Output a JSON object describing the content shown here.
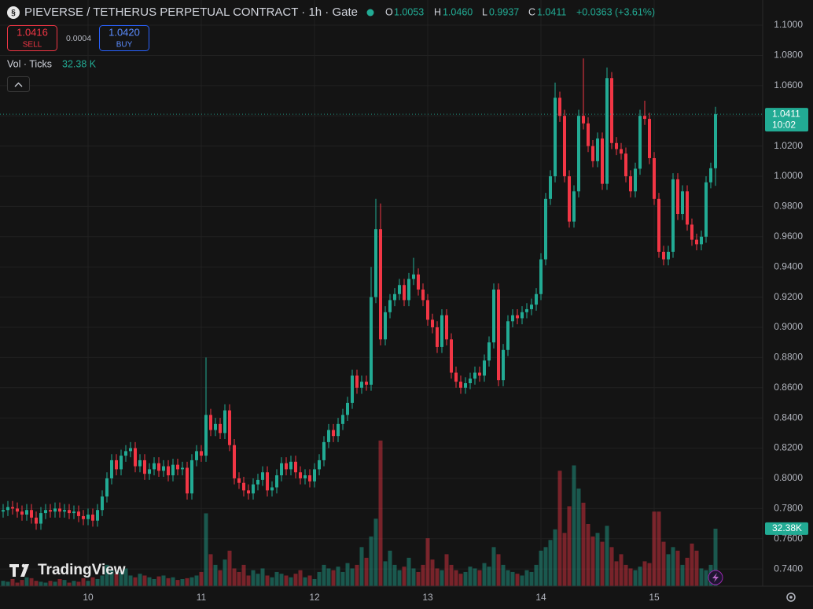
{
  "header": {
    "title": "PIEVERSE / TETHERUS PERPETUAL CONTRACT · 1h · Gate",
    "open_key": "O",
    "open": "1.0053",
    "high_key": "H",
    "high": "1.0460",
    "low_key": "L",
    "low": "0.9937",
    "close_key": "C",
    "close": "1.0411",
    "change": "+0.0363 (+3.61%)",
    "sell_price": "1.0416",
    "sell_label": "SELL",
    "spread": "0.0004",
    "buy_price": "1.0420",
    "buy_label": "BUY",
    "volume_indicator": "Vol · Ticks",
    "volume_value": "32.38 K",
    "price_badge": "1.0411",
    "countdown": "10:02",
    "volume_badge": "32.38K",
    "logo": "TradingView"
  },
  "chart_data": {
    "type": "candlestick",
    "up_color": "#22ab94",
    "down_color": "#f23645",
    "grid": true,
    "ylim": [
      0.7286,
      1.1167
    ],
    "yticks": [
      {
        "value": 1.1,
        "label": "1.1000"
      },
      {
        "value": 1.08,
        "label": "1.0800"
      },
      {
        "value": 1.06,
        "label": "1.0600"
      },
      {
        "value": 1.04,
        "label": "1.0400"
      },
      {
        "value": 1.02,
        "label": "1.0200"
      },
      {
        "value": 1.0,
        "label": "1.0000"
      },
      {
        "value": 0.98,
        "label": "0.9800"
      },
      {
        "value": 0.96,
        "label": "0.9600"
      },
      {
        "value": 0.94,
        "label": "0.9400"
      },
      {
        "value": 0.92,
        "label": "0.9200"
      },
      {
        "value": 0.9,
        "label": "0.9000"
      },
      {
        "value": 0.88,
        "label": "0.8800"
      },
      {
        "value": 0.86,
        "label": "0.8600"
      },
      {
        "value": 0.84,
        "label": "0.8400"
      },
      {
        "value": 0.82,
        "label": "0.8200"
      },
      {
        "value": 0.8,
        "label": "0.8000"
      },
      {
        "value": 0.78,
        "label": "0.7800"
      },
      {
        "value": 0.76,
        "label": "0.7600"
      },
      {
        "value": 0.74,
        "label": "0.7400"
      }
    ],
    "xticks": [
      {
        "value": 18,
        "label": "10"
      },
      {
        "value": 42,
        "label": "11"
      },
      {
        "value": 66,
        "label": "12"
      },
      {
        "value": 90,
        "label": "13"
      },
      {
        "value": 114,
        "label": "14"
      },
      {
        "value": 138,
        "label": "15"
      }
    ],
    "open": [
      0.778,
      0.779,
      0.781,
      0.78,
      0.778,
      0.776,
      0.779,
      0.774,
      0.77,
      0.777,
      0.779,
      0.778,
      0.78,
      0.778,
      0.779,
      0.777,
      0.778,
      0.775,
      0.773,
      0.776,
      0.772,
      0.779,
      0.788,
      0.8,
      0.812,
      0.806,
      0.815,
      0.818,
      0.82,
      0.808,
      0.812,
      0.803,
      0.806,
      0.81,
      0.805,
      0.808,
      0.802,
      0.809,
      0.806,
      0.807,
      0.79,
      0.812,
      0.818,
      0.815,
      0.842,
      0.832,
      0.836,
      0.83,
      0.845,
      0.822,
      0.8,
      0.797,
      0.792,
      0.79,
      0.796,
      0.799,
      0.804,
      0.792,
      0.794,
      0.802,
      0.81,
      0.806,
      0.811,
      0.804,
      0.8,
      0.802,
      0.798,
      0.806,
      0.812,
      0.824,
      0.832,
      0.828,
      0.836,
      0.842,
      0.85,
      0.868,
      0.86,
      0.864,
      0.862,
      0.92,
      0.965,
      0.892,
      0.91,
      0.918,
      0.922,
      0.928,
      0.918,
      0.932,
      0.935,
      0.925,
      0.918,
      0.905,
      0.9,
      0.887,
      0.908,
      0.892,
      0.87,
      0.864,
      0.86,
      0.863,
      0.866,
      0.87,
      0.868,
      0.878,
      0.89,
      0.925,
      0.865,
      0.885,
      0.904,
      0.908,
      0.906,
      0.91,
      0.912,
      0.915,
      0.922,
      0.945,
      0.985,
      1.0,
      1.052,
      1.04,
      1.0,
      0.97,
      0.99,
      1.04,
      1.035,
      1.02,
      1.01,
      1.025,
      0.995,
      1.065,
      1.022,
      1.018,
      1.015,
      1.0,
      0.99,
      1.005,
      1.04,
      1.038,
      1.012,
      0.985,
      0.95,
      0.945,
      0.95,
      0.998,
      0.975,
      0.99,
      0.968,
      0.958,
      0.955,
      0.96,
      0.996,
      1.0053
    ],
    "high": [
      0.783,
      0.785,
      0.785,
      0.784,
      0.782,
      0.783,
      0.783,
      0.778,
      0.781,
      0.783,
      0.783,
      0.784,
      0.784,
      0.783,
      0.783,
      0.782,
      0.782,
      0.779,
      0.78,
      0.78,
      0.783,
      0.792,
      0.804,
      0.816,
      0.816,
      0.819,
      0.822,
      0.824,
      0.824,
      0.816,
      0.816,
      0.81,
      0.814,
      0.814,
      0.812,
      0.812,
      0.813,
      0.813,
      0.811,
      0.811,
      0.816,
      0.822,
      0.822,
      0.88,
      0.846,
      0.84,
      0.84,
      0.849,
      0.849,
      0.826,
      0.804,
      0.801,
      0.796,
      0.8,
      0.803,
      0.808,
      0.808,
      0.798,
      0.806,
      0.814,
      0.814,
      0.815,
      0.815,
      0.808,
      0.806,
      0.806,
      0.81,
      0.816,
      0.828,
      0.836,
      0.836,
      0.84,
      0.846,
      0.854,
      0.872,
      0.872,
      0.868,
      0.868,
      0.94,
      0.985,
      0.982,
      0.914,
      0.922,
      0.926,
      0.932,
      0.932,
      0.936,
      0.946,
      0.939,
      0.929,
      0.922,
      0.909,
      0.904,
      0.912,
      0.912,
      0.896,
      0.874,
      0.868,
      0.867,
      0.87,
      0.874,
      0.874,
      0.882,
      0.894,
      0.929,
      0.929,
      0.889,
      0.908,
      0.912,
      0.912,
      0.914,
      0.916,
      0.919,
      0.926,
      0.949,
      0.989,
      1.004,
      1.062,
      1.056,
      1.044,
      1.004,
      0.994,
      1.044,
      1.078,
      1.039,
      1.024,
      1.029,
      1.029,
      1.072,
      1.069,
      1.026,
      1.022,
      1.019,
      1.004,
      1.009,
      1.044,
      1.05,
      1.042,
      1.016,
      0.989,
      0.954,
      0.954,
      1.002,
      1.002,
      0.994,
      0.994,
      0.972,
      0.962,
      0.964,
      1.0,
      1.009,
      1.046
    ],
    "low": [
      0.774,
      0.775,
      0.776,
      0.774,
      0.772,
      0.772,
      0.77,
      0.766,
      0.766,
      0.773,
      0.774,
      0.774,
      0.774,
      0.774,
      0.773,
      0.773,
      0.771,
      0.769,
      0.769,
      0.768,
      0.768,
      0.775,
      0.784,
      0.796,
      0.802,
      0.802,
      0.811,
      0.814,
      0.804,
      0.804,
      0.799,
      0.799,
      0.802,
      0.801,
      0.801,
      0.798,
      0.798,
      0.802,
      0.802,
      0.786,
      0.786,
      0.808,
      0.811,
      0.811,
      0.828,
      0.828,
      0.826,
      0.826,
      0.818,
      0.796,
      0.793,
      0.788,
      0.786,
      0.786,
      0.792,
      0.795,
      0.788,
      0.788,
      0.79,
      0.798,
      0.802,
      0.802,
      0.8,
      0.796,
      0.796,
      0.794,
      0.794,
      0.802,
      0.808,
      0.82,
      0.824,
      0.824,
      0.832,
      0.838,
      0.846,
      0.856,
      0.856,
      0.858,
      0.858,
      0.916,
      0.888,
      0.888,
      0.906,
      0.914,
      0.918,
      0.914,
      0.914,
      0.928,
      0.921,
      0.914,
      0.901,
      0.896,
      0.883,
      0.883,
      0.888,
      0.866,
      0.86,
      0.856,
      0.856,
      0.859,
      0.862,
      0.864,
      0.864,
      0.874,
      0.886,
      0.861,
      0.861,
      0.881,
      0.9,
      0.902,
      0.902,
      0.906,
      0.908,
      0.911,
      0.918,
      0.941,
      0.981,
      0.996,
      1.036,
      0.996,
      0.966,
      0.966,
      0.986,
      1.031,
      1.016,
      1.006,
      1.006,
      0.991,
      0.991,
      1.018,
      1.014,
      1.011,
      0.996,
      0.986,
      0.986,
      1.001,
      1.034,
      1.008,
      0.981,
      0.946,
      0.941,
      0.941,
      0.946,
      0.971,
      0.971,
      0.964,
      0.954,
      0.951,
      0.951,
      0.956,
      0.992,
      0.9937
    ],
    "close": [
      0.779,
      0.781,
      0.78,
      0.778,
      0.776,
      0.779,
      0.774,
      0.77,
      0.777,
      0.779,
      0.778,
      0.78,
      0.778,
      0.779,
      0.777,
      0.778,
      0.775,
      0.773,
      0.776,
      0.772,
      0.779,
      0.788,
      0.8,
      0.812,
      0.806,
      0.815,
      0.818,
      0.82,
      0.808,
      0.812,
      0.803,
      0.806,
      0.81,
      0.805,
      0.808,
      0.802,
      0.809,
      0.806,
      0.807,
      0.79,
      0.812,
      0.818,
      0.815,
      0.842,
      0.832,
      0.836,
      0.83,
      0.845,
      0.822,
      0.8,
      0.797,
      0.792,
      0.79,
      0.796,
      0.799,
      0.804,
      0.792,
      0.794,
      0.802,
      0.81,
      0.806,
      0.811,
      0.804,
      0.8,
      0.802,
      0.798,
      0.806,
      0.812,
      0.824,
      0.832,
      0.828,
      0.836,
      0.842,
      0.85,
      0.868,
      0.86,
      0.864,
      0.862,
      0.92,
      0.965,
      0.892,
      0.91,
      0.918,
      0.922,
      0.928,
      0.918,
      0.932,
      0.935,
      0.925,
      0.918,
      0.905,
      0.9,
      0.887,
      0.908,
      0.892,
      0.87,
      0.864,
      0.86,
      0.863,
      0.866,
      0.87,
      0.868,
      0.878,
      0.89,
      0.925,
      0.865,
      0.885,
      0.904,
      0.908,
      0.906,
      0.91,
      0.912,
      0.915,
      0.922,
      0.945,
      0.985,
      1.0,
      1.052,
      1.04,
      1.0,
      0.97,
      0.99,
      1.04,
      1.035,
      1.02,
      1.01,
      1.025,
      0.995,
      1.065,
      1.022,
      1.018,
      1.015,
      1.0,
      0.99,
      1.005,
      1.04,
      1.038,
      1.012,
      0.985,
      0.95,
      0.945,
      0.95,
      0.998,
      0.975,
      0.99,
      0.968,
      0.958,
      0.955,
      0.96,
      0.996,
      1.0053,
      1.0411
    ],
    "volume": [
      3000,
      2500,
      4000,
      2000,
      3500,
      5000,
      4500,
      3000,
      2500,
      2000,
      3000,
      2500,
      4000,
      3500,
      2000,
      3000,
      2500,
      4500,
      3000,
      5000,
      4000,
      6000,
      12000,
      9000,
      7000,
      8000,
      10000,
      6000,
      5000,
      7000,
      6000,
      5000,
      4000,
      5500,
      6000,
      4500,
      5000,
      3500,
      4000,
      4500,
      5000,
      6000,
      8000,
      41000,
      18000,
      12000,
      9000,
      15000,
      20000,
      10000,
      8000,
      12000,
      6000,
      9000,
      7000,
      10000,
      6000,
      5000,
      8000,
      7000,
      6000,
      5000,
      7000,
      9000,
      5000,
      6000,
      4000,
      8000,
      12000,
      10000,
      9000,
      11000,
      8000,
      13000,
      10000,
      12000,
      22000,
      16000,
      28000,
      38000,
      82000,
      14000,
      20000,
      12000,
      9000,
      11000,
      16000,
      10000,
      8000,
      12000,
      27000,
      15000,
      10000,
      9000,
      18000,
      12000,
      9000,
      7000,
      8000,
      11000,
      10000,
      9000,
      13000,
      11000,
      22000,
      18000,
      12000,
      9000,
      8000,
      7000,
      6000,
      9000,
      8000,
      12000,
      20000,
      22000,
      26000,
      32000,
      65000,
      30000,
      45000,
      68000,
      55000,
      47000,
      35000,
      28000,
      30000,
      25000,
      34000,
      22000,
      14000,
      18000,
      12000,
      10000,
      9000,
      11000,
      14000,
      13000,
      42000,
      42000,
      25000,
      18000,
      22000,
      20000,
      12000,
      16000,
      24000,
      20000,
      10000,
      9000,
      12000,
      32380
    ]
  }
}
